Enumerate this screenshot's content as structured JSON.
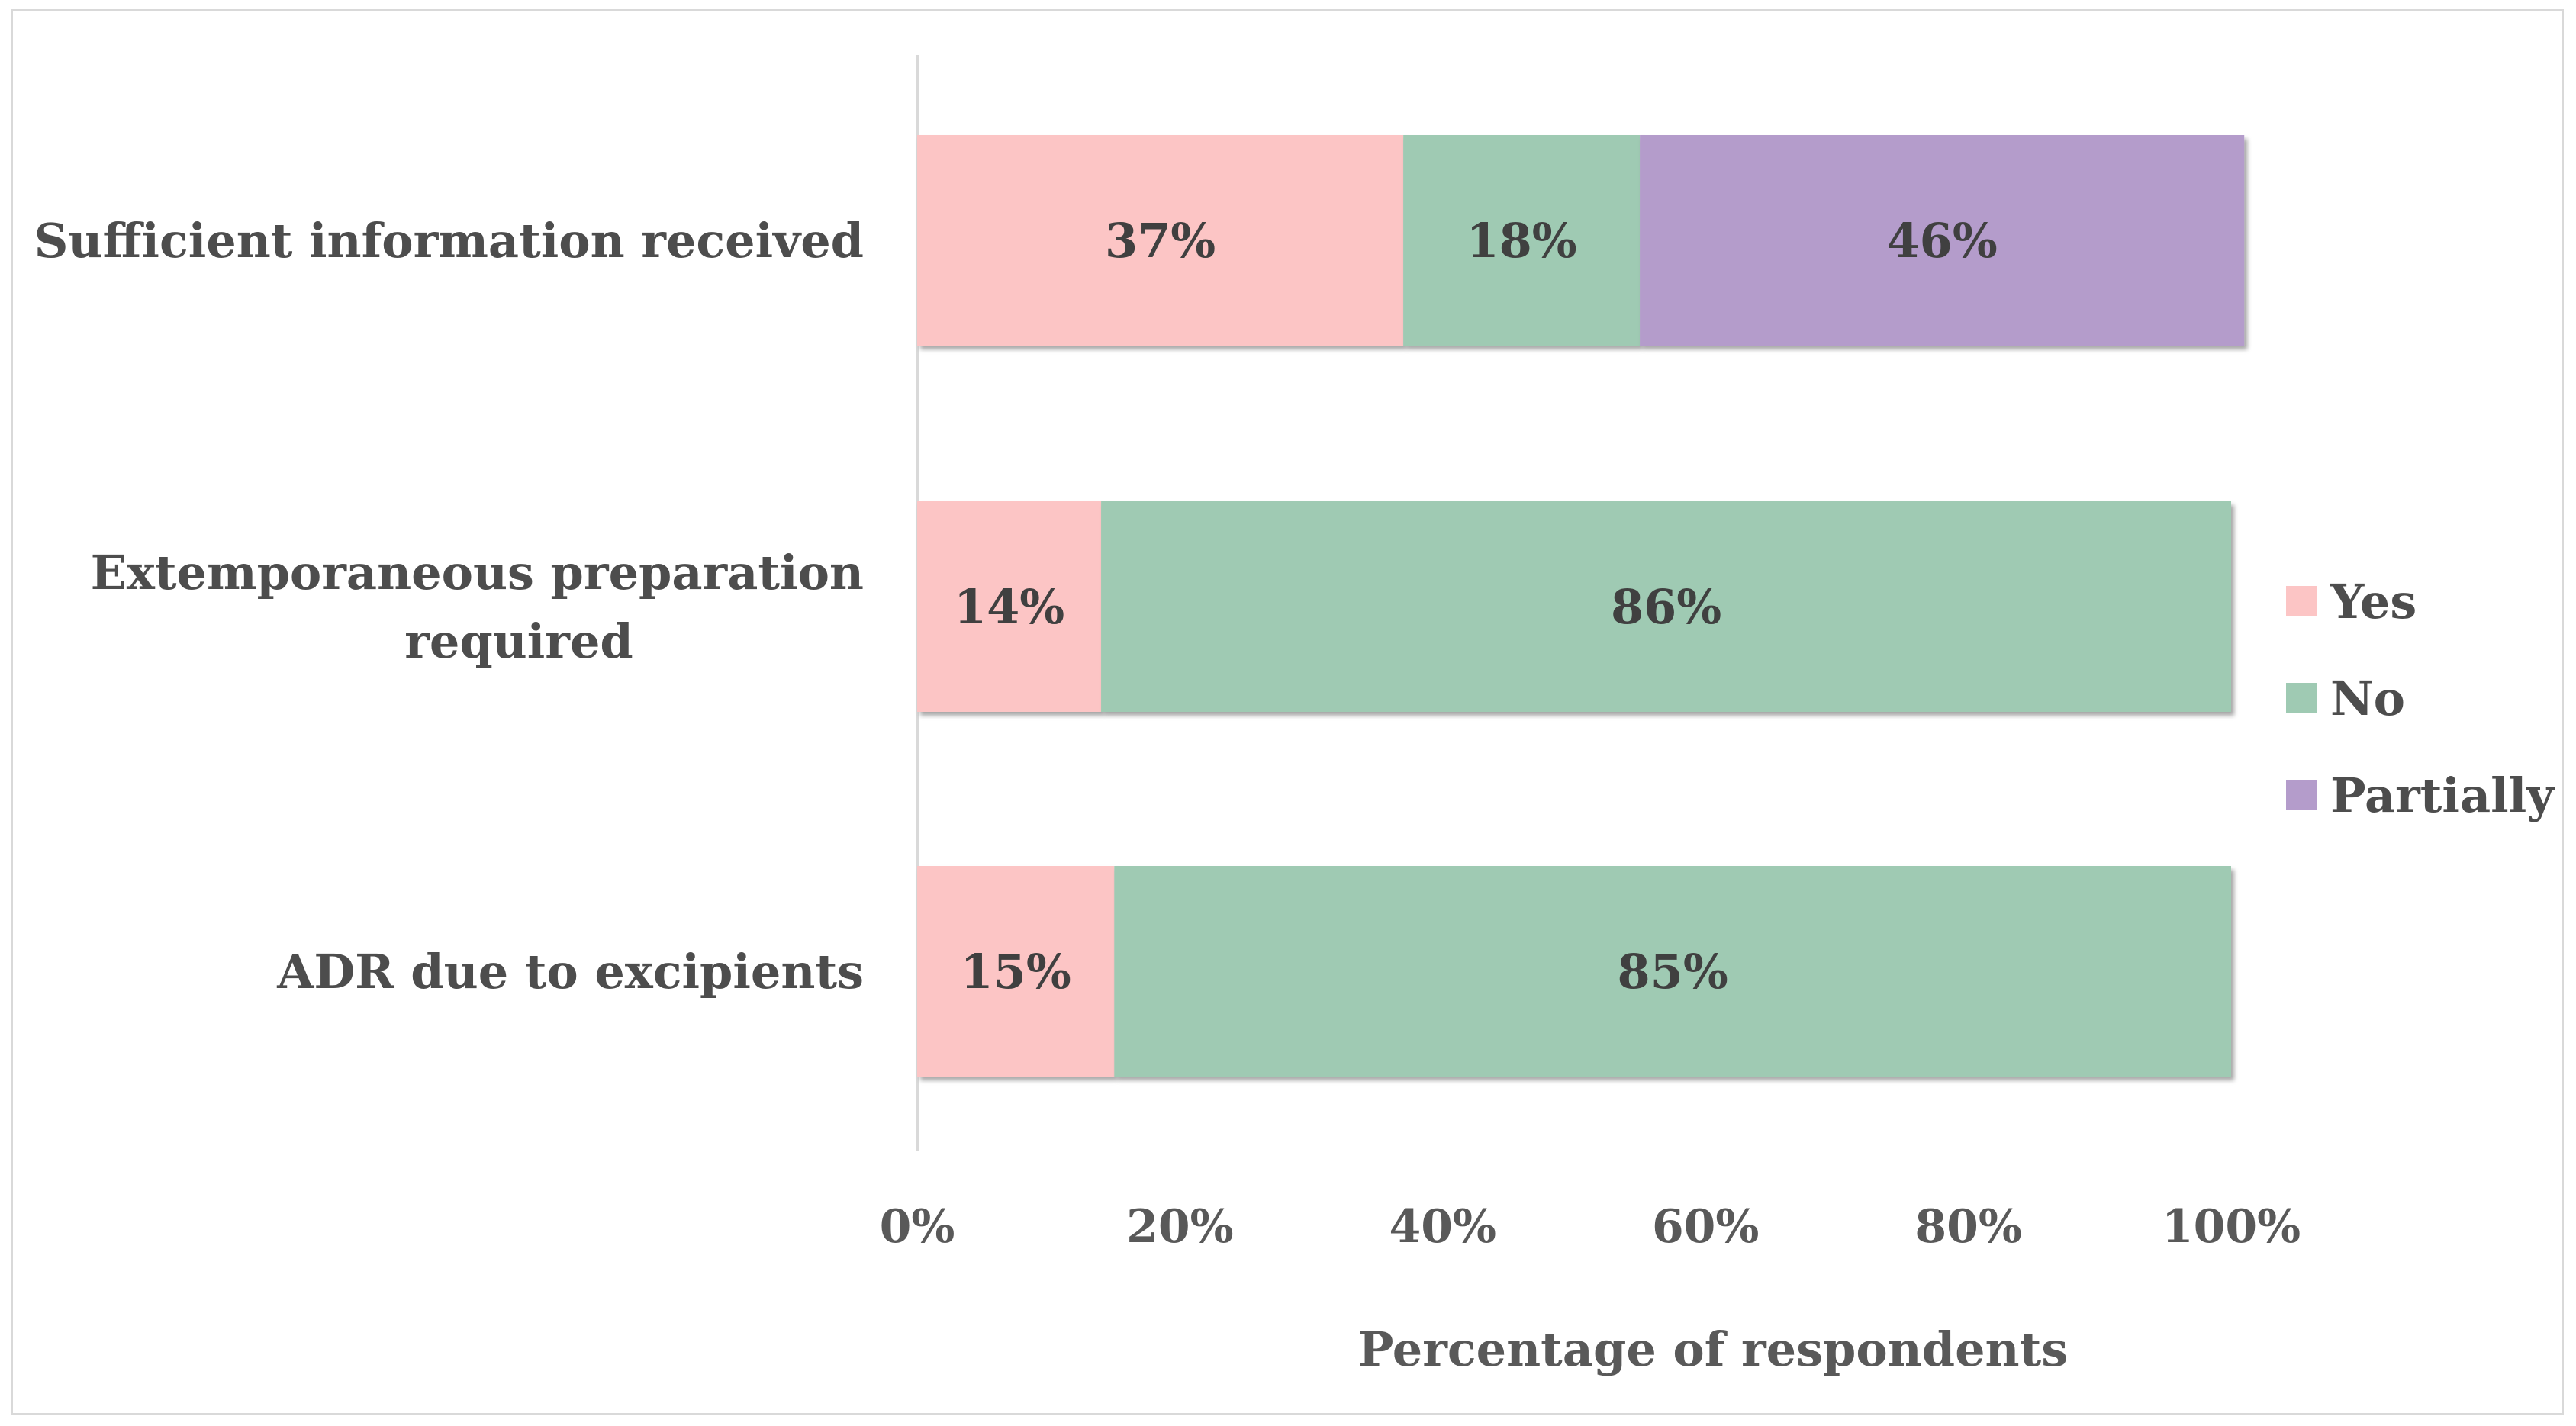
{
  "chart_data": {
    "type": "bar",
    "orientation": "horizontal",
    "stacked": true,
    "title": "",
    "xlabel": "Percentage of respondents",
    "ylabel": "",
    "xlim": [
      0,
      100
    ],
    "x_ticks": [
      "0%",
      "20%",
      "40%",
      "60%",
      "80%",
      "100%"
    ],
    "categories": [
      {
        "lines": [
          "Sufficient information received"
        ]
      },
      {
        "lines": [
          "Extemporaneous preparation",
          "required"
        ]
      },
      {
        "lines": [
          "ADR due to excipients"
        ]
      }
    ],
    "series": [
      {
        "name": "Yes",
        "color": "#fcc5c5",
        "values": [
          37,
          14,
          15
        ],
        "labels": [
          "37%",
          "14%",
          "15%"
        ]
      },
      {
        "name": "No",
        "color": "#9fcab3",
        "values": [
          18,
          86,
          85
        ],
        "labels": [
          "18%",
          "86%",
          "85%"
        ]
      },
      {
        "name": "Partially",
        "color": "#b49ccb",
        "values": [
          46,
          0,
          0
        ],
        "labels": [
          "46%",
          "",
          ""
        ]
      }
    ],
    "legend": {
      "position": "right",
      "entries": [
        "Yes",
        "No",
        "Partially"
      ]
    },
    "grid": false
  }
}
